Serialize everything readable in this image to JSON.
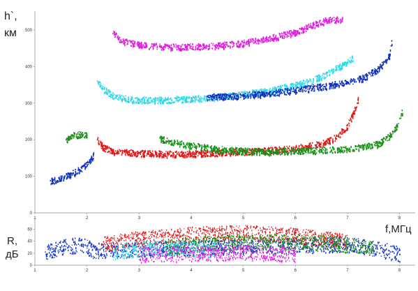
{
  "chart_data": [
    {
      "type": "scatter",
      "title": "",
      "ylabel_line1": "h`,",
      "ylabel_line2": "км",
      "xlim": [
        1,
        8.3
      ],
      "ylim": [
        0,
        540
      ],
      "xticks": [
        1,
        2,
        3,
        4,
        5,
        6,
        7,
        8
      ],
      "yticks": [
        0,
        100,
        200,
        300,
        400,
        500
      ],
      "grid": false,
      "colors": {
        "magenta": "#e020e0",
        "cyan": "#30d8e8",
        "blue": "#1030c0",
        "red": "#e01818",
        "green": "#189018"
      },
      "series": [
        {
          "color": "magenta",
          "x": [
            2.5,
            2.7,
            3.0,
            3.5,
            4.0,
            4.5,
            5.0,
            5.5,
            6.0,
            6.3,
            6.6,
            6.9
          ],
          "y": [
            490,
            470,
            460,
            455,
            455,
            458,
            465,
            478,
            495,
            512,
            528,
            530
          ]
        },
        {
          "color": "cyan",
          "x": [
            2.2,
            2.3,
            2.5,
            2.8,
            3.0,
            3.5,
            4.0,
            4.5,
            5.0,
            5.5,
            6.0,
            6.3,
            6.6,
            6.9,
            7.1
          ],
          "y": [
            360,
            340,
            320,
            312,
            310,
            310,
            312,
            318,
            325,
            335,
            350,
            362,
            380,
            405,
            425
          ]
        },
        {
          "color": "blue",
          "x": [
            1.3,
            1.5,
            1.7,
            1.9,
            2.05,
            2.12
          ],
          "y": [
            88,
            95,
            108,
            122,
            140,
            160
          ]
        },
        {
          "color": "blue",
          "x": [
            4.3,
            5.0,
            5.5,
            6.0,
            6.5,
            7.0,
            7.3,
            7.6,
            7.8,
            7.85
          ],
          "y": [
            318,
            322,
            328,
            336,
            346,
            358,
            370,
            395,
            430,
            470
          ]
        },
        {
          "color": "red",
          "x": [
            2.2,
            2.3,
            2.5,
            2.8,
            3.0,
            3.5,
            4.0,
            4.5,
            5.0,
            5.5,
            6.0,
            6.3,
            6.6,
            6.8,
            7.0,
            7.1,
            7.2
          ],
          "y": [
            200,
            180,
            170,
            166,
            164,
            162,
            163,
            165,
            168,
            172,
            178,
            185,
            195,
            210,
            240,
            270,
            310
          ]
        },
        {
          "color": "green",
          "x": [
            1.6,
            1.7,
            1.85,
            2.0
          ],
          "y": [
            200,
            212,
            215,
            212
          ]
        },
        {
          "color": "green",
          "x": [
            3.4,
            3.6,
            4.0,
            4.5,
            5.0,
            5.5,
            6.0,
            6.5,
            7.0,
            7.3,
            7.6,
            7.8,
            7.95,
            8.05
          ],
          "y": [
            205,
            195,
            185,
            175,
            170,
            168,
            170,
            172,
            176,
            180,
            190,
            210,
            240,
            280
          ]
        }
      ]
    },
    {
      "type": "scatter",
      "xlabel": "f,МГц",
      "ylabel_line1": "R,",
      "ylabel_line2": "дБ",
      "xlim": [
        1,
        8.3
      ],
      "ylim": [
        0,
        70
      ],
      "xticks": [
        1,
        2,
        3,
        4,
        5,
        6,
        7,
        8
      ],
      "yticks": [
        0,
        20,
        40,
        60
      ],
      "grid": false,
      "series": [
        {
          "color": "blue",
          "x": [
            1.2,
            1.5,
            1.8,
            2.0,
            2.1,
            7.0,
            7.4,
            7.8,
            8.0
          ],
          "y": [
            22,
            30,
            34,
            32,
            25,
            35,
            30,
            24,
            18
          ]
        },
        {
          "color": "red",
          "x": [
            2.3,
            3.0,
            4.0,
            5.0,
            6.0,
            7.0
          ],
          "y": [
            35,
            45,
            52,
            55,
            50,
            40
          ]
        },
        {
          "color": "green",
          "x": [
            3.5,
            4.5,
            5.5,
            6.5,
            7.5
          ],
          "y": [
            30,
            38,
            40,
            38,
            30
          ]
        },
        {
          "color": "cyan",
          "x": [
            2.5,
            3.0,
            3.5,
            4.0,
            4.5
          ],
          "y": [
            22,
            28,
            30,
            28,
            24
          ]
        },
        {
          "color": "magenta",
          "x": [
            3.0,
            4.0,
            5.0,
            6.0
          ],
          "y": [
            18,
            20,
            22,
            18
          ]
        }
      ]
    }
  ]
}
